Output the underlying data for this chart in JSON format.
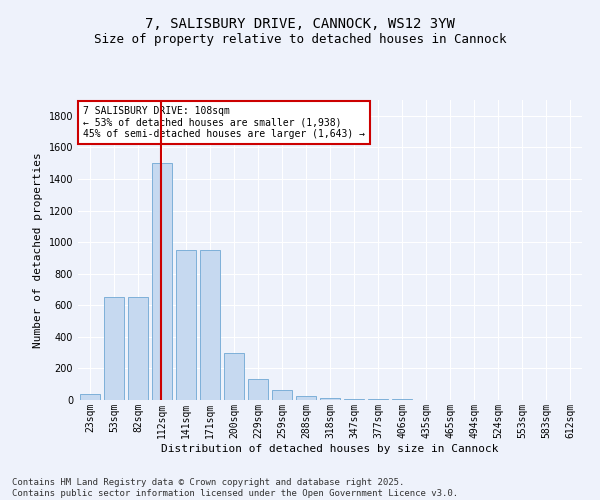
{
  "title1": "7, SALISBURY DRIVE, CANNOCK, WS12 3YW",
  "title2": "Size of property relative to detached houses in Cannock",
  "xlabel": "Distribution of detached houses by size in Cannock",
  "ylabel": "Number of detached properties",
  "categories": [
    "23sqm",
    "53sqm",
    "82sqm",
    "112sqm",
    "141sqm",
    "171sqm",
    "200sqm",
    "229sqm",
    "259sqm",
    "288sqm",
    "318sqm",
    "347sqm",
    "377sqm",
    "406sqm",
    "435sqm",
    "465sqm",
    "494sqm",
    "524sqm",
    "553sqm",
    "583sqm",
    "612sqm"
  ],
  "values": [
    40,
    650,
    650,
    1500,
    950,
    950,
    295,
    130,
    65,
    25,
    10,
    5,
    5,
    5,
    0,
    0,
    0,
    0,
    0,
    0,
    0
  ],
  "bar_color": "#c6d9f0",
  "bar_edge_color": "#6fa8d4",
  "vline_x": 2.95,
  "vline_color": "#cc0000",
  "ylim": [
    0,
    1900
  ],
  "yticks": [
    0,
    200,
    400,
    600,
    800,
    1000,
    1200,
    1400,
    1600,
    1800
  ],
  "annotation_text": "7 SALISBURY DRIVE: 108sqm\n← 53% of detached houses are smaller (1,938)\n45% of semi-detached houses are larger (1,643) →",
  "annotation_box_facecolor": "#ffffff",
  "annotation_box_edgecolor": "#cc0000",
  "footnote": "Contains HM Land Registry data © Crown copyright and database right 2025.\nContains public sector information licensed under the Open Government Licence v3.0.",
  "bg_color": "#eef2fb",
  "grid_color": "#ffffff",
  "title_fontsize": 10,
  "subtitle_fontsize": 9,
  "axis_label_fontsize": 8,
  "tick_fontsize": 7,
  "annot_fontsize": 7,
  "footnote_fontsize": 6.5
}
